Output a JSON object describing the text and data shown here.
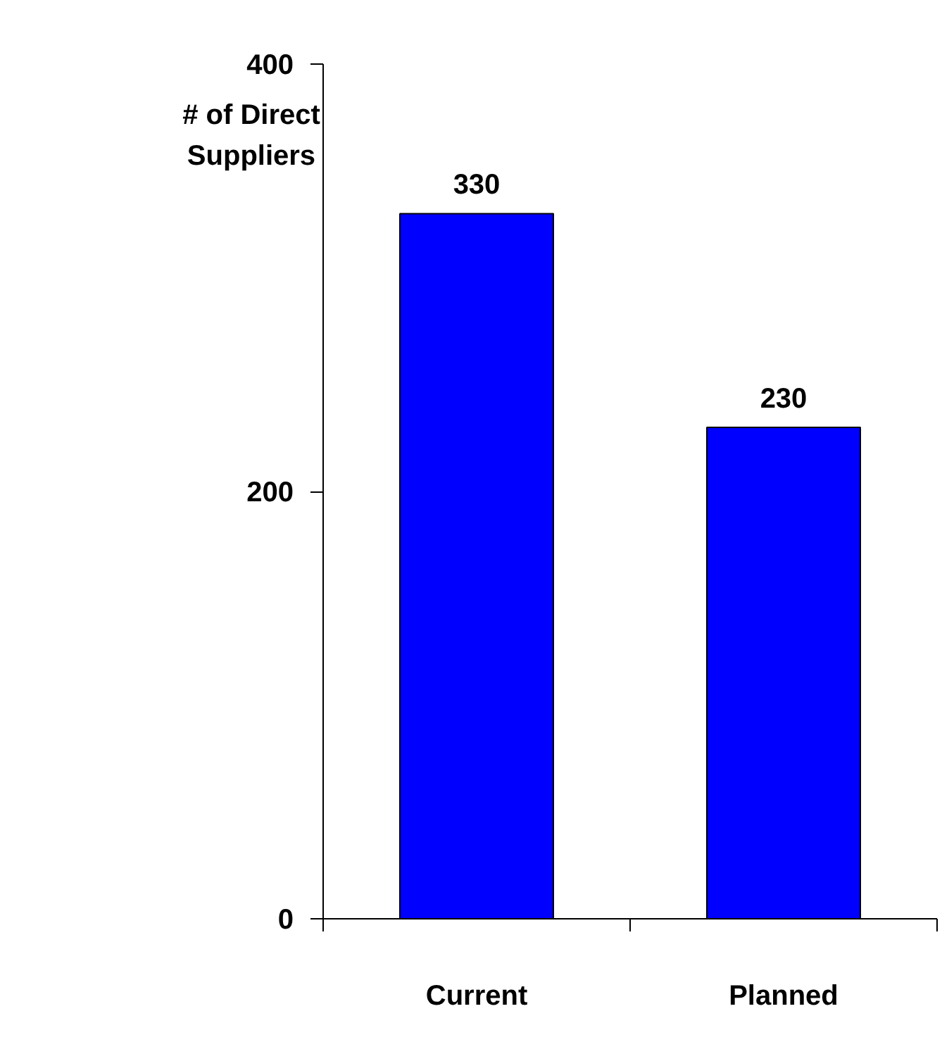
{
  "chart_data": {
    "type": "bar",
    "ylabel": "# of Direct Suppliers",
    "categories": [
      "Current",
      "Planned"
    ],
    "values": [
      330,
      230
    ],
    "color": "#0000ff",
    "ylim": [
      0,
      400
    ],
    "yticks": [
      0,
      200,
      400
    ],
    "grid": false,
    "data_labels": true
  }
}
